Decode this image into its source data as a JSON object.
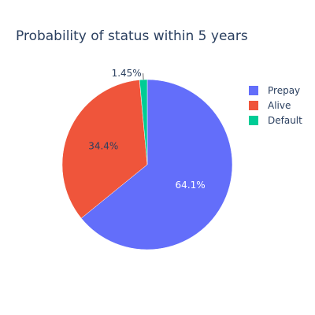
{
  "chart_data": {
    "type": "pie",
    "title": "Probability of status within 5 years",
    "categories": [
      "Prepay",
      "Alive",
      "Default"
    ],
    "values": [
      64.1,
      34.4,
      1.45
    ],
    "labels": [
      "64.1%",
      "34.4%",
      "1.45%"
    ],
    "colors": [
      "#636efa",
      "#ef553b",
      "#00cc96"
    ],
    "label_colors": [
      "#ffffff",
      "#2a3f5f",
      "#2a3f5f"
    ],
    "direction": "clockwise",
    "start_angle_deg": 90,
    "legend_position": "right"
  }
}
